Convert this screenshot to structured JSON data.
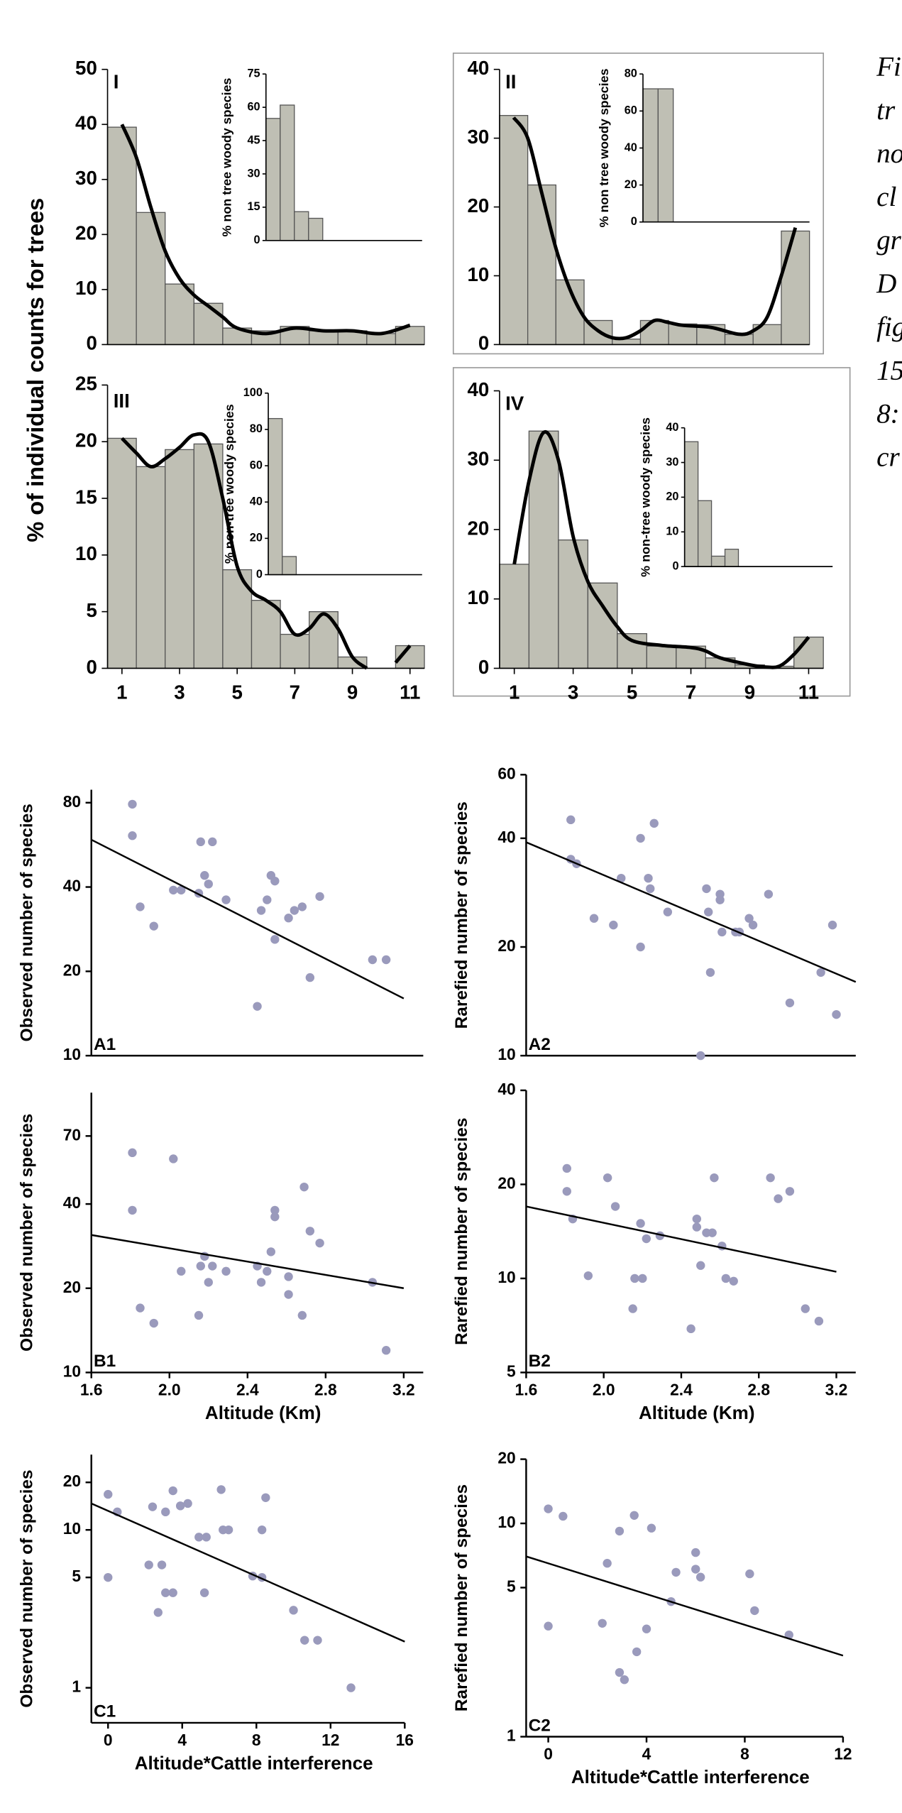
{
  "figure": {
    "ylabel": "% of individual counts for trees",
    "caption_lines": [
      "Fi",
      "tr",
      "no",
      "cl",
      "gr",
      "D",
      "fig",
      "15",
      "8:",
      "cr"
    ]
  },
  "chart_data": [
    {
      "type": "histogram",
      "label": "I",
      "color": "#bfbfb4",
      "bins": [
        0.5,
        1.5,
        2.5,
        3.5,
        4.5,
        5.5,
        6.5,
        7.5,
        8.5,
        9.5,
        10.5,
        11.5
      ],
      "counts": [
        39.5,
        24,
        11,
        7.5,
        3,
        2.5,
        3.3,
        2.5,
        2.5,
        2,
        3.3
      ],
      "xlim": [
        0.5,
        11.5
      ],
      "ylim": [
        0,
        50
      ],
      "yticks": [
        0,
        10,
        20,
        30,
        40,
        50
      ],
      "curve": {
        "x": [
          1,
          1.5,
          2,
          2.5,
          3,
          3.5,
          4,
          4.5,
          5,
          6,
          7,
          8,
          9,
          10,
          11
        ],
        "y": [
          40,
          34,
          25,
          17,
          12,
          9,
          7,
          5,
          3,
          2,
          3,
          2.5,
          2.5,
          2,
          3.5
        ]
      },
      "inset": {
        "ylabel": "% non tree woody species",
        "color": "#bfbfb4",
        "bins": [
          0.5,
          1.5,
          2.5,
          3.5,
          4.5,
          5.5,
          6.5,
          7.5,
          8.5,
          9.5,
          10.5,
          11.5
        ],
        "counts": [
          55,
          61,
          13,
          10,
          0,
          0,
          0,
          0,
          0,
          0,
          0
        ],
        "xlim": [
          0.5,
          11.5
        ],
        "ylim": [
          0,
          75
        ],
        "yticks": [
          0,
          15,
          30,
          45,
          60,
          75
        ]
      }
    },
    {
      "type": "histogram",
      "label": "II",
      "color": "#bfbfb4",
      "bins": [
        0.5,
        1.5,
        2.5,
        3.5,
        4.5,
        5.5,
        6.5,
        7.5,
        8.5,
        9.5,
        10.5,
        11.5
      ],
      "counts": [
        33.3,
        23.2,
        9.4,
        3.5,
        0.8,
        3.5,
        3,
        2.9,
        1.5,
        2.9,
        16.5
      ],
      "xlim": [
        0.5,
        11.5
      ],
      "ylim": [
        0,
        40
      ],
      "yticks": [
        0,
        10,
        20,
        30,
        40
      ],
      "curve": {
        "x": [
          1,
          1.5,
          2,
          2.5,
          3,
          3.5,
          4,
          4.5,
          5,
          5.5,
          6,
          6.5,
          7,
          8,
          9,
          9.5,
          10,
          10.5,
          11
        ],
        "y": [
          33,
          30,
          22,
          14,
          8,
          4,
          2,
          1,
          1,
          2,
          3.5,
          3.2,
          2.8,
          2.5,
          1.5,
          2,
          4,
          10,
          17
        ]
      },
      "inset": {
        "ylabel": "% non tree woody species",
        "color": "#bfbfb4",
        "bins": [
          0.5,
          1.5,
          2.5,
          3.5,
          4.5,
          5.5,
          6.5,
          7.5,
          8.5,
          9.5,
          10.5,
          11.5
        ],
        "counts": [
          72,
          72,
          0,
          0,
          0,
          0,
          0,
          0,
          0,
          0,
          0
        ],
        "xlim": [
          0.5,
          11.5
        ],
        "ylim": [
          0,
          80
        ],
        "yticks": [
          0,
          20,
          40,
          60,
          80
        ]
      }
    },
    {
      "type": "histogram",
      "label": "III",
      "color": "#bfbfb4",
      "bins": [
        0.5,
        1.5,
        2.5,
        3.5,
        4.5,
        5.5,
        6.5,
        7.5,
        8.5,
        9.5,
        10.5,
        11.5
      ],
      "counts": [
        20.3,
        17.8,
        19.3,
        19.8,
        8.7,
        6,
        3,
        5,
        1,
        0,
        2
      ],
      "xlim": [
        0.5,
        11.5
      ],
      "ylim": [
        0,
        25
      ],
      "yticks": [
        0,
        5,
        10,
        15,
        20,
        25
      ],
      "xticks": [
        1,
        3,
        5,
        7,
        9,
        11
      ],
      "curve": {
        "x": [
          1,
          1.5,
          2,
          2.5,
          3,
          3.5,
          4,
          4.5,
          5,
          5.5,
          6,
          6.5,
          7,
          7.5,
          8,
          8.5,
          9,
          9.5,
          10,
          10.5,
          11
        ],
        "y": [
          20.3,
          19,
          17.8,
          18.5,
          19.5,
          20.6,
          20,
          15,
          9,
          6.8,
          6,
          5,
          3,
          3.5,
          4.8,
          3.5,
          1,
          0,
          null,
          0.5,
          2
        ]
      },
      "inset": {
        "ylabel": "% non-tree woody species",
        "color": "#bfbfb4",
        "bins": [
          0.5,
          1.5,
          2.5,
          3.5,
          4.5,
          5.5,
          6.5,
          7.5,
          8.5,
          9.5,
          10.5,
          11.5
        ],
        "counts": [
          86,
          10,
          0,
          0,
          0,
          0,
          0,
          0,
          0,
          0,
          0
        ],
        "xlim": [
          0.5,
          11.5
        ],
        "ylim": [
          0,
          100
        ],
        "yticks": [
          0,
          20,
          40,
          60,
          80,
          100
        ]
      }
    },
    {
      "type": "histogram",
      "label": "IV",
      "color": "#bfbfb4",
      "bins": [
        0.5,
        1.5,
        2.5,
        3.5,
        4.5,
        5.5,
        6.5,
        7.5,
        8.5,
        9.5,
        10.5,
        11.5
      ],
      "counts": [
        15,
        34.2,
        18.5,
        12.3,
        5,
        3.2,
        3.2,
        1.5,
        0.5,
        0.3,
        4.5
      ],
      "xlim": [
        0.5,
        11.5
      ],
      "ylim": [
        0,
        40
      ],
      "yticks": [
        0,
        10,
        20,
        30,
        40
      ],
      "xticks": [
        1,
        3,
        5,
        7,
        9,
        11
      ],
      "curve": {
        "x": [
          1,
          1.5,
          2,
          2.5,
          3,
          3.5,
          4,
          4.5,
          5,
          6,
          7,
          7.5,
          8,
          9,
          9.5,
          10,
          10.5,
          11
        ],
        "y": [
          15,
          27,
          34,
          30,
          19,
          12.5,
          9,
          6,
          4,
          3.3,
          3,
          2.5,
          1.5,
          0.5,
          0.2,
          0.3,
          2,
          4.5
        ]
      },
      "inset": {
        "ylabel": "% non-tree woody species",
        "color": "#bfbfb4",
        "bins": [
          0.5,
          1.5,
          2.5,
          3.5,
          4.5,
          5.5,
          6.5,
          7.5,
          8.5,
          9.5,
          10.5,
          11.5
        ],
        "counts": [
          36,
          19,
          3,
          5,
          0,
          0,
          0,
          0,
          0,
          0,
          0
        ],
        "xlim": [
          0.5,
          11.5
        ],
        "ylim": [
          0,
          40
        ],
        "yticks": [
          0,
          10,
          20,
          30,
          40
        ]
      }
    },
    {
      "type": "scatter",
      "label": "A1",
      "ylabel": "Observed number of species",
      "color": "#9a9abc",
      "log_y": true,
      "x": [
        1.81,
        1.81,
        1.85,
        1.92,
        2.02,
        2.06,
        2.15,
        2.16,
        2.18,
        2.2,
        2.22,
        2.29,
        2.45,
        2.47,
        2.5,
        2.52,
        2.54,
        2.54,
        2.61,
        2.64,
        2.68,
        2.72,
        2.77,
        3.04,
        3.11
      ],
      "y": [
        79,
        61,
        34,
        29,
        39,
        39,
        38,
        58,
        44,
        41,
        58,
        36,
        15,
        33,
        36,
        44,
        42,
        26,
        31,
        33,
        34,
        19,
        37,
        22,
        22
      ],
      "trend": {
        "x": [
          1.6,
          3.2
        ],
        "y": [
          59,
          16
        ]
      },
      "xlim": [
        1.6,
        3.3
      ],
      "ylim": [
        10,
        89
      ],
      "yticks": [
        10,
        20,
        40,
        80
      ]
    },
    {
      "type": "scatter",
      "label": "A2",
      "ylabel": "Rarefied number of species",
      "color": "#9a9abc",
      "log_y": true,
      "x": [
        1.83,
        1.83,
        1.86,
        1.95,
        2.05,
        2.09,
        2.19,
        2.19,
        2.23,
        2.24,
        2.26,
        2.33,
        2.5,
        2.53,
        2.54,
        2.55,
        2.6,
        2.6,
        2.61,
        2.68,
        2.7,
        2.75,
        2.77,
        2.85,
        2.96,
        3.12,
        3.18,
        3.2
      ],
      "y": [
        45,
        35,
        34,
        24,
        23,
        31,
        40,
        20,
        31,
        29,
        44,
        25,
        10,
        29,
        25,
        17,
        28,
        27,
        22,
        22,
        22,
        24,
        23,
        28,
        14,
        17,
        23,
        13
      ],
      "trend": {
        "x": [
          1.6,
          3.3
        ],
        "y": [
          39,
          16
        ]
      },
      "xlim": [
        1.6,
        3.3
      ],
      "ylim": [
        10,
        60
      ],
      "yticks": [
        10,
        20,
        40,
        60
      ]
    },
    {
      "type": "scatter",
      "label": "B1",
      "ylabel": "Observed number of species",
      "xlabel": "Altitude (Km)",
      "color": "#9a9abc",
      "log_y": true,
      "x": [
        1.81,
        1.81,
        1.85,
        1.92,
        2.02,
        2.06,
        2.15,
        2.16,
        2.18,
        2.2,
        2.22,
        2.29,
        2.45,
        2.47,
        2.5,
        2.52,
        2.54,
        2.54,
        2.61,
        2.61,
        2.68,
        2.69,
        2.72,
        2.77,
        3.04,
        3.11
      ],
      "y": [
        61,
        38,
        17,
        15,
        58,
        23,
        16,
        24,
        26,
        21,
        24,
        23,
        24,
        21,
        23,
        27,
        38,
        36,
        22,
        19,
        16,
        46,
        32,
        29,
        21,
        12
      ],
      "trend": {
        "x": [
          1.6,
          3.2
        ],
        "y": [
          31,
          20
        ]
      },
      "xlim": [
        1.6,
        3.3
      ],
      "ylim": [
        10,
        100
      ],
      "yticks": [
        10,
        20,
        40,
        70
      ],
      "xticks": [
        1.6,
        {
          "value": 2,
          "label": "2.0"
        },
        2.4,
        2.8,
        3.2
      ]
    },
    {
      "type": "scatter",
      "label": "B2",
      "ylabel": "Rarefied number of species",
      "xlabel": "Altitude (Km)",
      "color": "#9a9abc",
      "log_y": true,
      "x": [
        1.81,
        1.81,
        1.84,
        1.92,
        2.02,
        2.06,
        2.16,
        2.2,
        2.15,
        2.19,
        2.22,
        2.29,
        2.45,
        2.48,
        2.48,
        2.5,
        2.53,
        2.56,
        2.57,
        2.61,
        2.63,
        2.67,
        2.86,
        2.9,
        2.96,
        3.04,
        3.11
      ],
      "y": [
        22.5,
        19,
        15.5,
        10.2,
        21,
        17,
        10,
        10,
        8,
        15,
        13.4,
        13.7,
        6.9,
        15.5,
        14.6,
        11,
        14,
        14,
        21,
        12.7,
        10,
        9.8,
        21,
        18,
        19,
        8,
        7.3
      ],
      "trend": {
        "x": [
          1.6,
          3.2
        ],
        "y": [
          17,
          10.5
        ]
      },
      "xlim": [
        1.6,
        3.3
      ],
      "ylim": [
        5,
        40
      ],
      "yticks": [
        5,
        10,
        20,
        40
      ],
      "xticks": [
        1.6,
        {
          "value": 2,
          "label": "2.0"
        },
        2.4,
        2.8,
        3.2
      ]
    },
    {
      "type": "scatter",
      "label": "C1",
      "ylabel": "Observed number of species",
      "xlabel": "Altitude*Cattle interference",
      "color": "#9a9abc",
      "log_y": true,
      "x": [
        0,
        0,
        0.5,
        2.4,
        2.2,
        2.9,
        2.7,
        3.1,
        3.5,
        3.1,
        3.5,
        3.9,
        4.3,
        4.9,
        5.3,
        5.2,
        6.1,
        6.2,
        6.5,
        7.8,
        8.3,
        8.3,
        8.5,
        10,
        10.6,
        11.3,
        13.1
      ],
      "y": [
        16.8,
        5,
        13,
        14,
        6,
        6,
        3,
        4,
        4,
        13,
        17.7,
        14.2,
        14.7,
        9,
        9,
        4,
        18,
        10,
        10,
        5.1,
        5,
        10,
        16,
        3.1,
        2,
        2,
        1
      ],
      "trend": {
        "x": [
          -0.9,
          16
        ],
        "y": [
          14.7,
          1.96
        ]
      },
      "xlim": [
        -0.9,
        16
      ],
      "ylim": [
        0.6,
        30
      ],
      "yticks": [
        1,
        5,
        10,
        20
      ],
      "xticks": [
        0,
        4,
        8,
        12,
        16
      ]
    },
    {
      "type": "scatter",
      "label": "C2",
      "ylabel": "Rarefied number of species",
      "xlabel": "Altitude*Cattle interference",
      "color": "#9a9abc",
      "log_y": true,
      "x": [
        0,
        0,
        0.6,
        2.4,
        2.2,
        2.9,
        2.9,
        3.1,
        3.5,
        3.6,
        4,
        4.2,
        5,
        5.2,
        6,
        6,
        6.2,
        8.2,
        8.4,
        9.8
      ],
      "y": [
        11.7,
        3.3,
        10.8,
        6.5,
        3.4,
        9.2,
        2,
        1.85,
        10.9,
        2.5,
        3.2,
        9.5,
        4.3,
        5.9,
        7.3,
        6.1,
        5.6,
        5.8,
        3.9,
        3
      ],
      "trend": {
        "x": [
          -0.9,
          12
        ],
        "y": [
          7,
          2.4
        ]
      },
      "xlim": [
        -0.9,
        12
      ],
      "ylim": [
        1,
        20
      ],
      "yticks": [
        1,
        5,
        10,
        20
      ],
      "xticks": [
        0,
        4,
        8,
        12
      ]
    }
  ]
}
